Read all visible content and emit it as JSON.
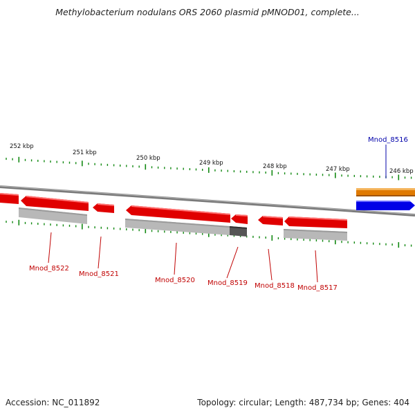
{
  "title": "Methylobacterium nodulans ORS 2060 plasmid pMNOD01, complete...",
  "footer": {
    "accession": "Accession: NC_011892",
    "summary": "Topology: circular; Length: 487,734 bp; Genes: 404"
  },
  "colors": {
    "backbone": "#808080",
    "minus_strand_gene": "#e00000",
    "plus_strand_gene": "#0000e6",
    "orange_feature": "#e07a00",
    "shadow_feature": "#b8b8b8",
    "dark_shadow_feature": "#555555",
    "tick": "#118811",
    "label_red": "#c00000",
    "label_blue": "#0000aa"
  },
  "kbp_labels": [
    "252 kbp",
    "251 kbp",
    "250 kbp",
    "249 kbp",
    "248 kbp",
    "247 kbp",
    "246 kbp"
  ],
  "gene_labels": [
    {
      "name": "Mnod_8516",
      "strand": "plus"
    },
    {
      "name": "Mnod_8522",
      "strand": "minus"
    },
    {
      "name": "Mnod_8521",
      "strand": "minus"
    },
    {
      "name": "Mnod_8520",
      "strand": "minus"
    },
    {
      "name": "Mnod_8519",
      "strand": "minus"
    },
    {
      "name": "Mnod_8518",
      "strand": "minus"
    },
    {
      "name": "Mnod_8517",
      "strand": "minus"
    }
  ]
}
